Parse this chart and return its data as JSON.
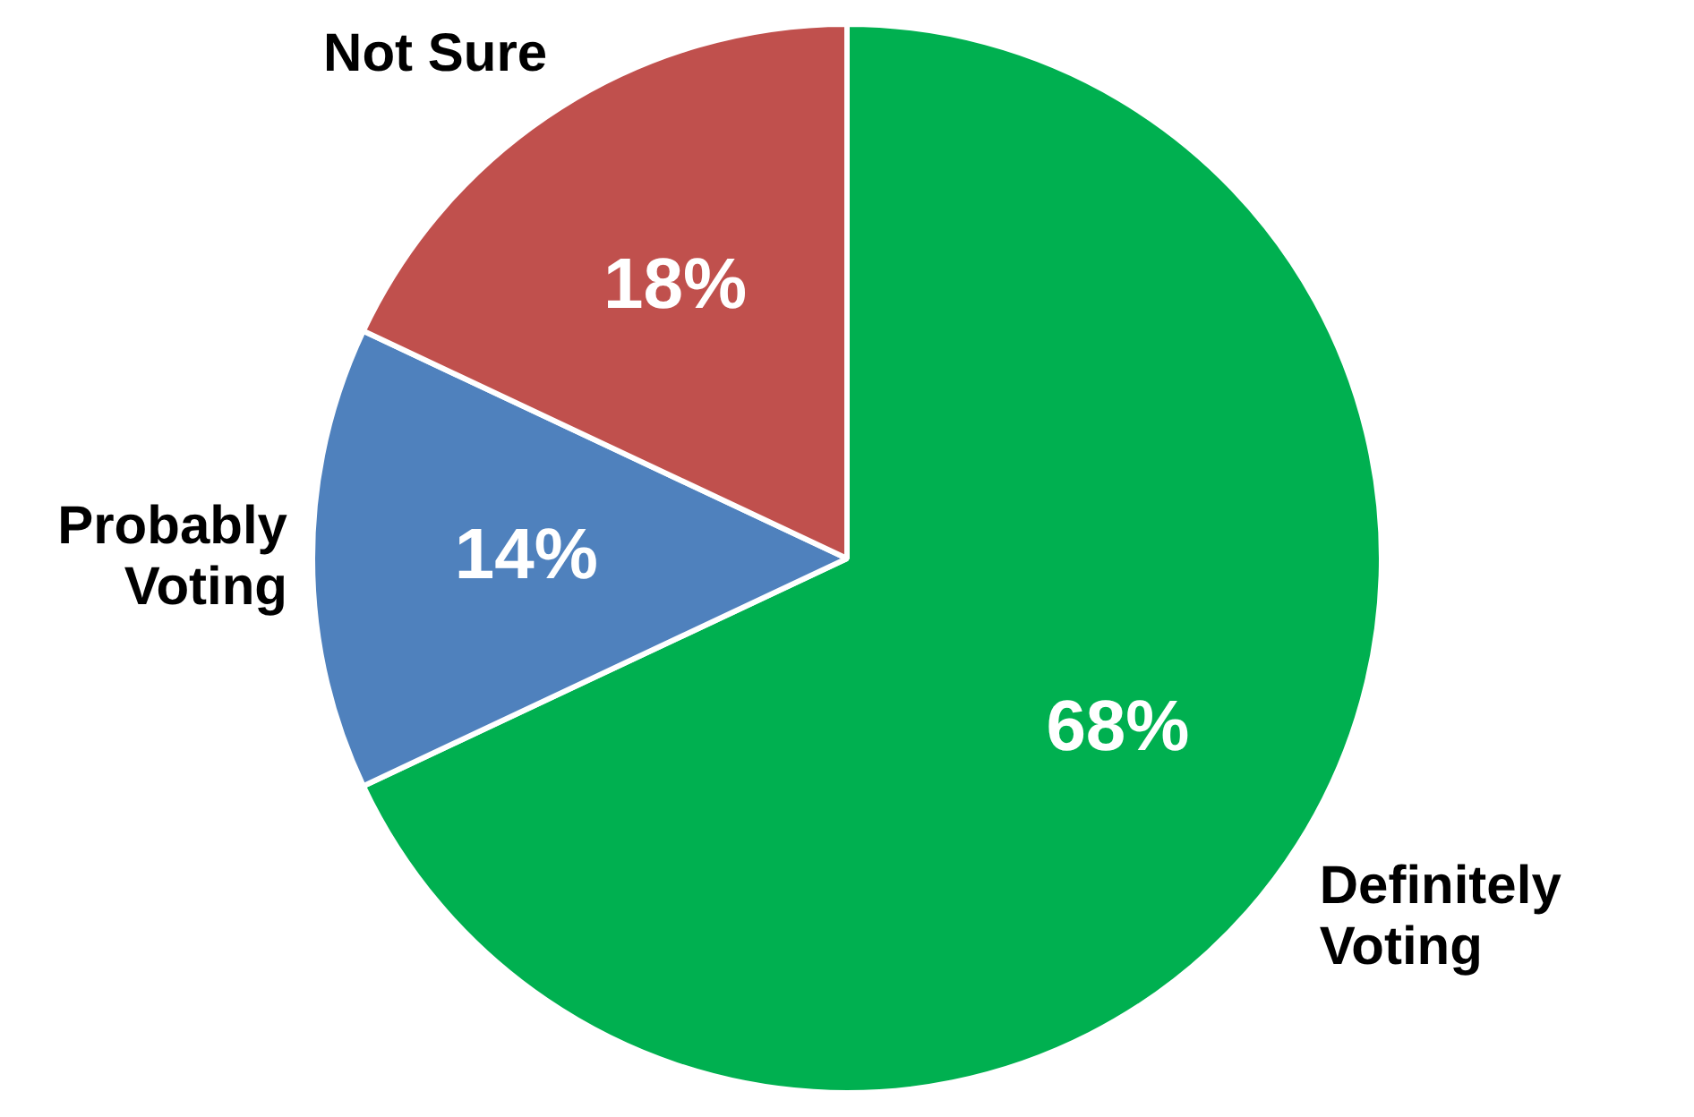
{
  "chart_data": {
    "type": "pie",
    "categories": [
      "Definitely Voting",
      "Probably Voting",
      "Not Sure"
    ],
    "values": [
      68,
      14,
      18
    ],
    "colors": [
      "#00b050",
      "#4f81bd",
      "#c0504d"
    ],
    "value_labels": [
      "68%",
      "14%",
      "18%"
    ],
    "legend": false
  }
}
